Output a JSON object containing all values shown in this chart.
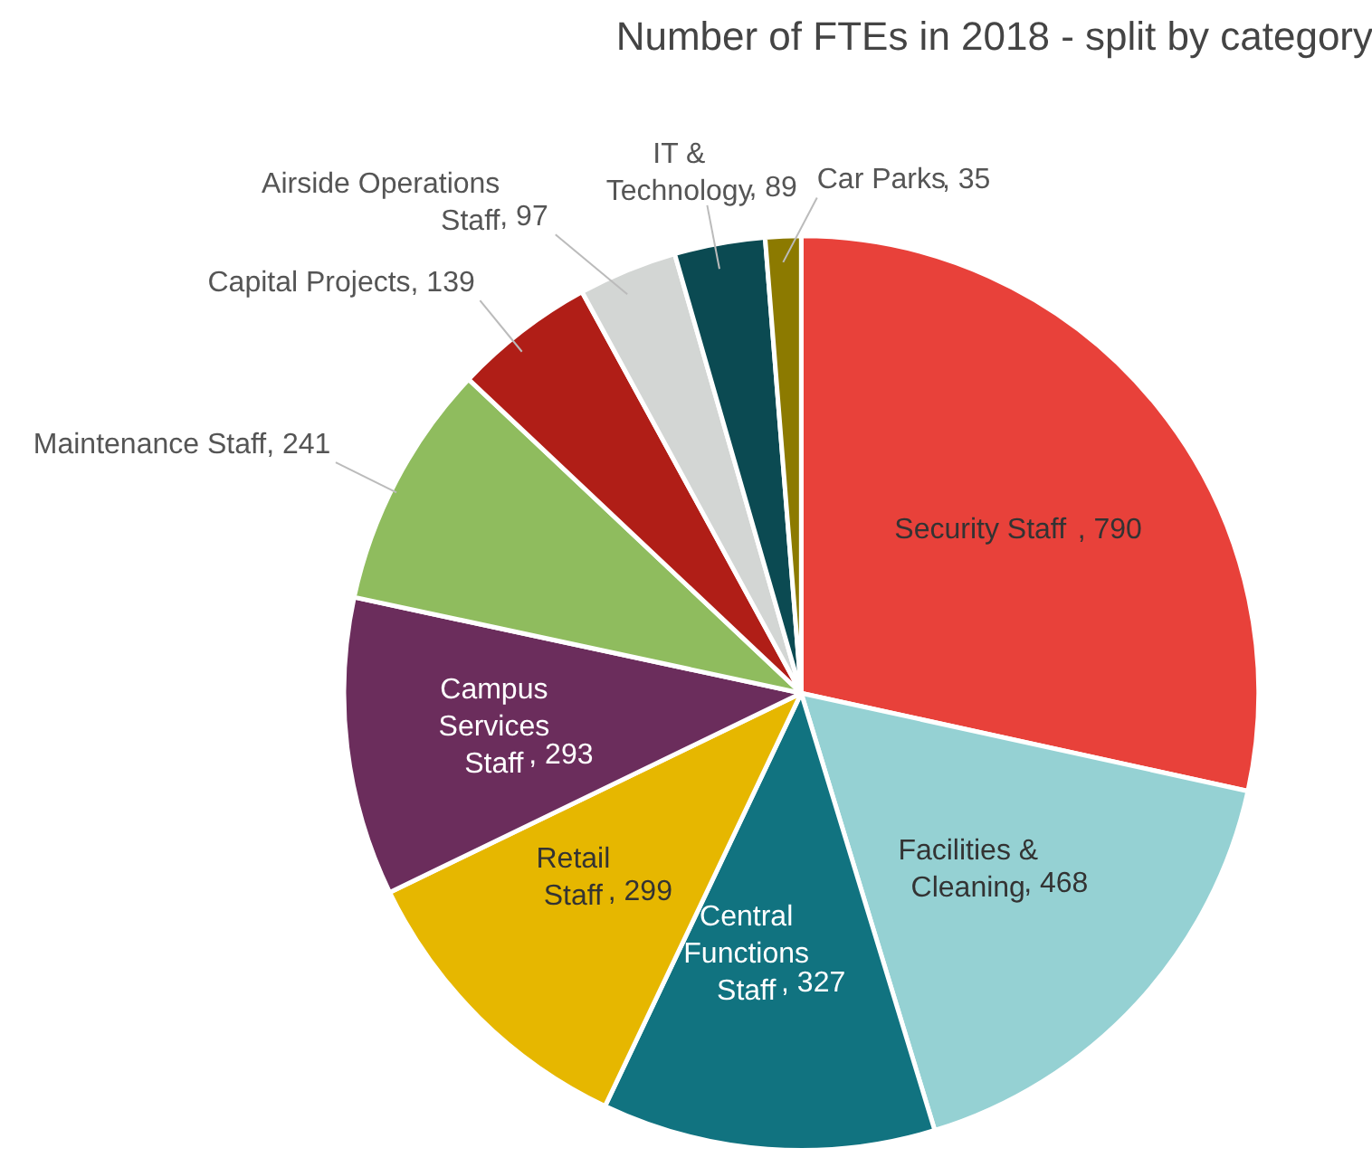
{
  "chart_data": {
    "type": "pie",
    "title": "Number of FTEs in 2018 - split by category",
    "categories": [
      "Security Staff",
      "Facilities & Cleaning",
      "Central Functions Staff",
      "Retail Staff",
      "Campus Services Staff",
      "Maintenance Staff",
      "Capital Projects",
      "Airside Operations Staff",
      "IT & Technology",
      "Car Parks"
    ],
    "values": [
      790,
      468,
      327,
      299,
      293,
      241,
      139,
      97,
      89,
      35
    ],
    "colors": [
      "#e8413a",
      "#95d1d3",
      "#117380",
      "#e6b700",
      "#6b2d5c",
      "#8fbc5e",
      "#b01e17",
      "#d3d6d4",
      "#0b4a52",
      "#8c7a00"
    ],
    "value_labels": [
      ", 790",
      ", 468",
      ", 327",
      ", 299",
      ", 293",
      ", 241",
      ", 139",
      ", 97",
      ", 89",
      ", 35"
    ],
    "legend": false
  }
}
